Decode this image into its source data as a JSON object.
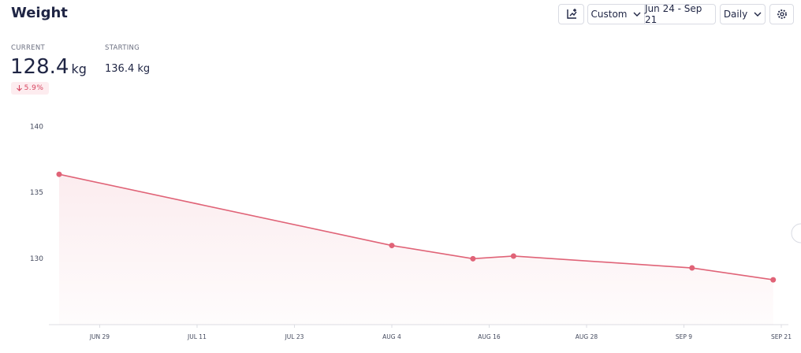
{
  "header": {
    "title": "Weight",
    "controls": {
      "range_mode": "Custom",
      "date_range": "Jun 24 - Sep 21",
      "interval": "Daily"
    }
  },
  "stats": {
    "current": {
      "label": "CURRENT",
      "value": "128.4",
      "unit": "kg"
    },
    "starting": {
      "label": "STARTING",
      "value": "136.4 kg"
    },
    "change": "5.9%"
  },
  "chart_data": {
    "type": "line",
    "x": [
      "06-24",
      "08-04",
      "08-14",
      "08-19",
      "09-10",
      "09-20"
    ],
    "series": [
      {
        "color": "#e06377",
        "values": [
          136.4,
          131.0,
          130.0,
          130.2,
          129.3,
          128.4
        ]
      }
    ],
    "area": true,
    "xlim": [
      "06-24",
      "09-21"
    ],
    "xticks": [
      {
        "value": "06-29",
        "label": "JUN 29"
      },
      {
        "value": "07-11",
        "label": "JUL 11"
      },
      {
        "value": "07-23",
        "label": "JUL 23"
      },
      {
        "value": "08-04",
        "label": "AUG 4"
      },
      {
        "value": "08-16",
        "label": "AUG 16"
      },
      {
        "value": "08-28",
        "label": "AUG 28"
      },
      {
        "value": "09-09",
        "label": "SEP 9"
      },
      {
        "value": "09-21",
        "label": "SEP 21"
      }
    ],
    "ylim": [
      125,
      141
    ],
    "yticks": [
      130,
      135,
      140
    ],
    "grid": false
  }
}
